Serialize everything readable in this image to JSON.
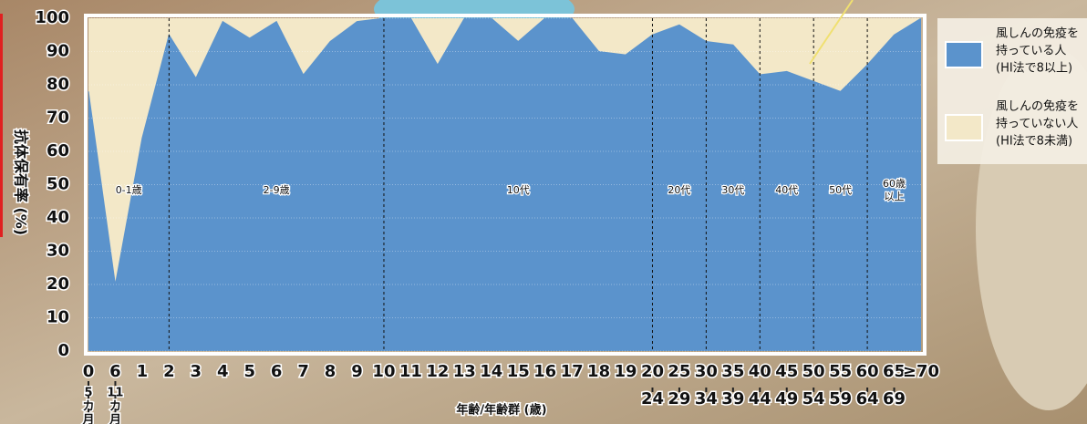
{
  "chart_data": {
    "type": "area",
    "y_label": "抗体保有率 (%)",
    "x_label": "年齢/年齢群 (歳)",
    "categories": [
      [
        "0",
        "5",
        "カ",
        "月"
      ],
      [
        "6",
        "11",
        "カ",
        "月"
      ],
      [
        "1"
      ],
      [
        "2"
      ],
      [
        "3"
      ],
      [
        "4"
      ],
      [
        "5"
      ],
      [
        "6"
      ],
      [
        "7"
      ],
      [
        "8"
      ],
      [
        "9"
      ],
      [
        "10"
      ],
      [
        "11"
      ],
      [
        "12"
      ],
      [
        "13"
      ],
      [
        "14"
      ],
      [
        "15"
      ],
      [
        "16"
      ],
      [
        "17"
      ],
      [
        "18"
      ],
      [
        "19"
      ],
      [
        "20",
        "24"
      ],
      [
        "25",
        "29"
      ],
      [
        "30",
        "34"
      ],
      [
        "35",
        "39"
      ],
      [
        "40",
        "44"
      ],
      [
        "45",
        "49"
      ],
      [
        "50",
        "54"
      ],
      [
        "55",
        "59"
      ],
      [
        "60",
        "64"
      ],
      [
        "65",
        "69"
      ],
      [
        "≥70"
      ]
    ],
    "series": [
      {
        "name": [
          "風しんの免疫を",
          "持っている人",
          "(HI法で8以上)"
        ],
        "color": "#5b93cc",
        "values": [
          78,
          20,
          64,
          95,
          82,
          99,
          94,
          99,
          83,
          93,
          99,
          100,
          100,
          86,
          100,
          100,
          93,
          100,
          100,
          90,
          89,
          95,
          98,
          93,
          92,
          83,
          84,
          81,
          78,
          86,
          95,
          100
        ]
      }
    ],
    "complement": {
      "name": [
        "風しんの免疫を",
        "持っていない人",
        "(HI法で8未満)"
      ],
      "color": "#f3e8c8"
    },
    "groups": [
      {
        "label": [
          "0-1歳"
        ],
        "from": "0"
      },
      {
        "label": [
          "2-9歳"
        ],
        "from": "2"
      },
      {
        "label": [
          "10代"
        ],
        "from": "10"
      },
      {
        "label": [
          "20代"
        ],
        "from": "20"
      },
      {
        "label": [
          "30代"
        ],
        "from": "30"
      },
      {
        "label": [
          "40代"
        ],
        "from": "40"
      },
      {
        "label": [
          "50代"
        ],
        "from": "50"
      },
      {
        "label": [
          "60歳",
          "以上"
        ],
        "from": "60"
      }
    ],
    "ylim": [
      0,
      100
    ],
    "yticks": [
      0,
      10,
      20,
      30,
      40,
      50,
      60,
      70,
      80,
      90,
      100
    ],
    "grid": true
  }
}
